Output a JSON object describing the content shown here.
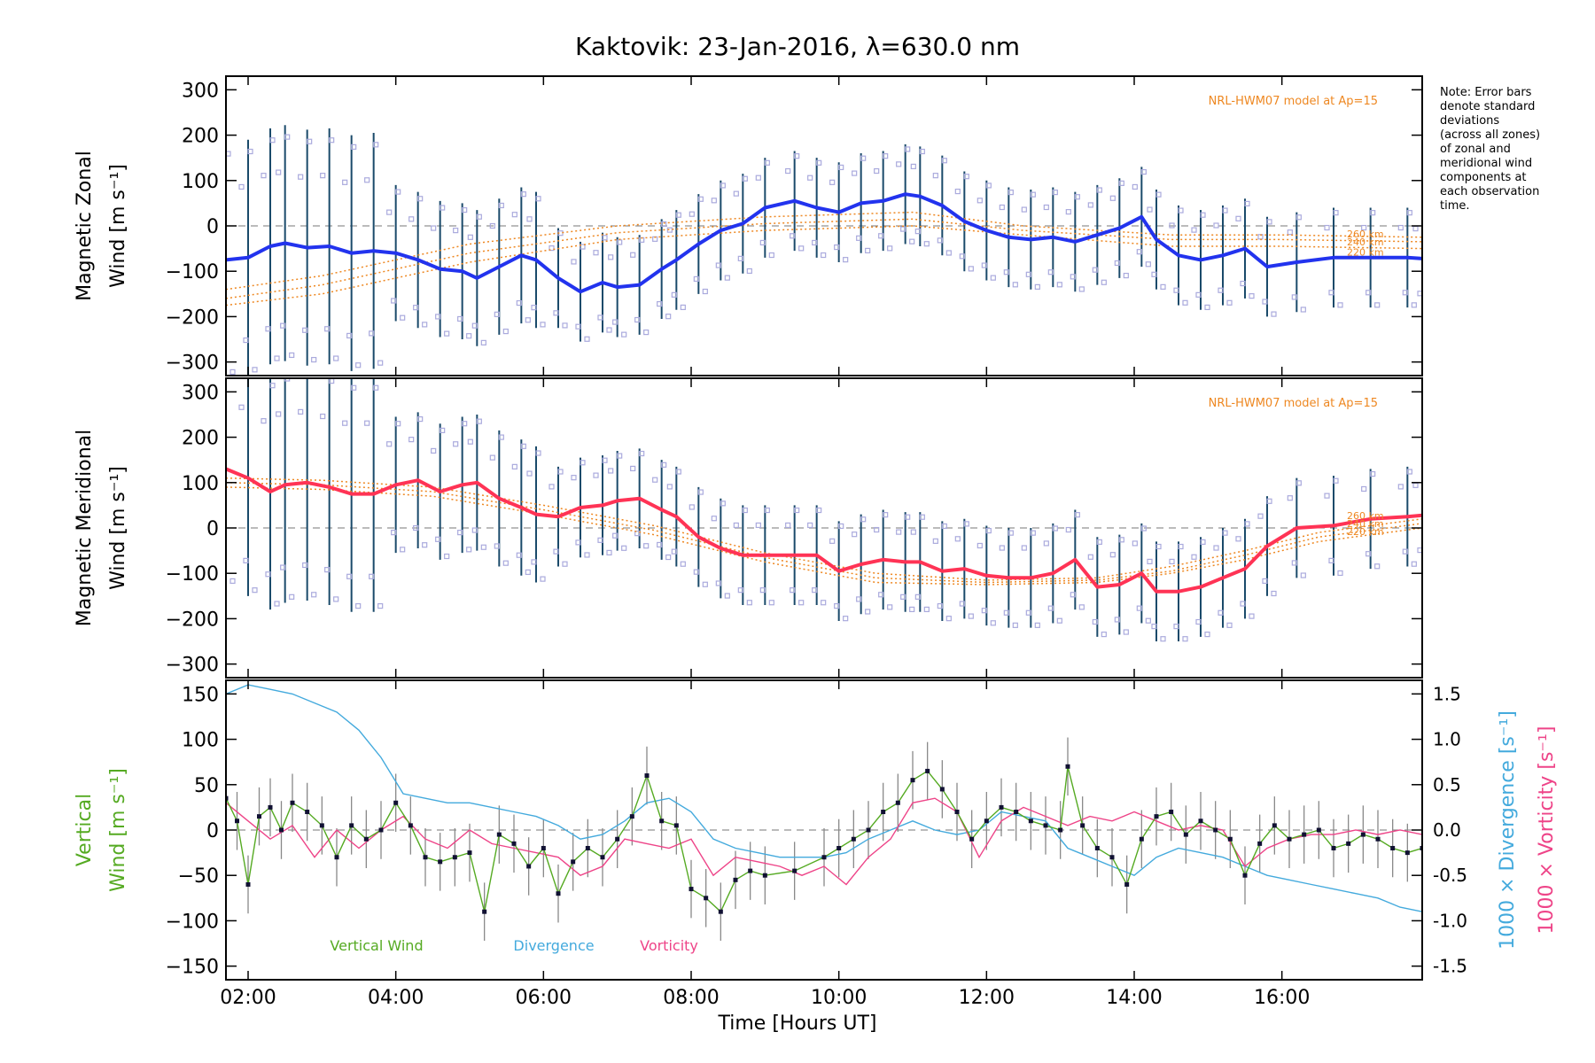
{
  "figure": {
    "title": "Kaktovik: 23-Jan-2016, λ=630.0 nm",
    "note": [
      "Note: Error bars",
      "denote standard",
      "deviations",
      "(across all zones)",
      "of zonal and",
      "meridional wind",
      "components at",
      "each observation",
      "time."
    ],
    "x_label": "Time [Hours UT]",
    "x_ticks": [
      "02:00",
      "04:00",
      "06:00",
      "08:00",
      "10:00",
      "12:00",
      "14:00",
      "16:00"
    ]
  },
  "colors": {
    "zonal": "#2233ee",
    "zonal_late": "#44aadd",
    "meridional": "#ff3355",
    "model": "#ee8822",
    "vertical": "#55aa22",
    "divergence": "#44aadd",
    "vorticity": "#ee4488",
    "errorbar": "#1a4a6a",
    "scatter": "#aaaadd"
  },
  "chart_data": [
    {
      "type": "line",
      "panel": "zonal",
      "ylabel_lines": [
        "Magnetic Zonal",
        "Wind [m s⁻¹]"
      ],
      "ylim": [
        -330,
        330
      ],
      "y_ticks": [
        300,
        200,
        100,
        0,
        -100,
        -200,
        -300
      ],
      "model_label": "NRL-HWM07 model at Ap=15",
      "model_heights": [
        "260 km",
        "240 km",
        "220 km"
      ],
      "series": [
        {
          "x": [
            1.7,
            2.0,
            2.3,
            2.5,
            2.8,
            3.1,
            3.4,
            3.7,
            4.0,
            4.3,
            4.6,
            4.9,
            5.1,
            5.4,
            5.7,
            5.9,
            6.2,
            6.5,
            6.8,
            7.0,
            7.3,
            7.6,
            7.8,
            8.1,
            8.4,
            8.7,
            9.0,
            9.4,
            9.7,
            10.0,
            10.3,
            10.6,
            10.9,
            11.1,
            11.4,
            11.7,
            12.0,
            12.3,
            12.6,
            12.9,
            13.2,
            13.5,
            13.8,
            14.1,
            14.3,
            14.6,
            14.9,
            15.2,
            15.5,
            15.8,
            16.2,
            16.7,
            17.2,
            17.7,
            17.9
          ],
          "y": [
            -75,
            -70,
            -45,
            -38,
            -48,
            -45,
            -60,
            -55,
            -60,
            -75,
            -95,
            -100,
            -115,
            -90,
            -65,
            -75,
            -115,
            -145,
            -125,
            -135,
            -130,
            -95,
            -75,
            -40,
            -10,
            5,
            40,
            55,
            40,
            30,
            50,
            55,
            70,
            65,
            45,
            10,
            -10,
            -25,
            -30,
            -25,
            -35,
            -20,
            -5,
            20,
            -30,
            -65,
            -75,
            -65,
            -50,
            -90,
            -80,
            -70,
            -70,
            -70,
            -72
          ]
        }
      ],
      "models": [
        {
          "name": "260 km",
          "x": [
            1.7,
            3.0,
            5.0,
            7.0,
            9.0,
            11.0,
            12.5,
            14.5,
            16.0,
            17.9
          ],
          "y": [
            -140,
            -110,
            -40,
            0,
            20,
            30,
            0,
            -20,
            -20,
            -25
          ]
        },
        {
          "name": "240 km",
          "x": [
            1.7,
            3.0,
            5.0,
            7.0,
            9.0,
            11.0,
            12.5,
            14.5,
            16.0,
            17.9
          ],
          "y": [
            -160,
            -130,
            -60,
            -15,
            5,
            15,
            -10,
            -30,
            -30,
            -35
          ]
        },
        {
          "name": "220 km",
          "x": [
            1.7,
            3.0,
            5.0,
            7.0,
            9.0,
            11.0,
            12.5,
            14.5,
            16.0,
            17.9
          ],
          "y": [
            -175,
            -150,
            -80,
            -30,
            -10,
            0,
            -20,
            -45,
            -45,
            -50
          ]
        }
      ]
    },
    {
      "type": "line",
      "panel": "meridional",
      "ylabel_lines": [
        "Magnetic Meridional",
        "Wind [m s⁻¹]"
      ],
      "ylim": [
        -330,
        330
      ],
      "y_ticks": [
        300,
        200,
        100,
        0,
        -100,
        -200,
        -300
      ],
      "model_label": "NRL-HWM07 model at Ap=15",
      "model_heights": [
        "260 km",
        "240 km",
        "220 km"
      ],
      "series": [
        {
          "x": [
            1.7,
            2.0,
            2.3,
            2.5,
            2.8,
            3.1,
            3.4,
            3.7,
            4.0,
            4.3,
            4.6,
            4.9,
            5.1,
            5.4,
            5.7,
            5.9,
            6.2,
            6.5,
            6.8,
            7.0,
            7.3,
            7.6,
            7.8,
            8.1,
            8.4,
            8.7,
            9.0,
            9.4,
            9.7,
            10.0,
            10.3,
            10.6,
            10.9,
            11.1,
            11.4,
            11.7,
            12.0,
            12.3,
            12.6,
            12.9,
            13.2,
            13.5,
            13.8,
            14.1,
            14.3,
            14.6,
            14.9,
            15.2,
            15.5,
            15.8,
            16.2,
            16.7,
            17.2,
            17.7,
            17.9
          ],
          "y": [
            130,
            110,
            80,
            95,
            100,
            90,
            75,
            75,
            95,
            105,
            80,
            95,
            100,
            65,
            45,
            30,
            25,
            45,
            50,
            60,
            65,
            40,
            25,
            -20,
            -45,
            -60,
            -60,
            -60,
            -60,
            -95,
            -80,
            -70,
            -75,
            -75,
            -95,
            -90,
            -105,
            -110,
            -110,
            -100,
            -70,
            -130,
            -125,
            -100,
            -140,
            -140,
            -130,
            -110,
            -90,
            -40,
            0,
            5,
            20,
            25,
            28
          ]
        }
      ],
      "models": [
        {
          "name": "260 km",
          "x": [
            1.7,
            3.0,
            4.5,
            6.0,
            7.5,
            9.0,
            10.5,
            12.0,
            13.5,
            14.5,
            15.5,
            16.5,
            17.9
          ],
          "y": [
            110,
            105,
            90,
            50,
            5,
            -55,
            -100,
            -115,
            -110,
            -85,
            -50,
            -10,
            20
          ]
        },
        {
          "name": "240 km",
          "x": [
            1.7,
            3.0,
            4.5,
            6.0,
            7.5,
            9.0,
            10.5,
            12.0,
            13.5,
            14.5,
            15.5,
            16.5,
            17.9
          ],
          "y": [
            100,
            95,
            80,
            40,
            -5,
            -65,
            -110,
            -120,
            -115,
            -95,
            -60,
            -20,
            10
          ]
        },
        {
          "name": "220 km",
          "x": [
            1.7,
            3.0,
            4.5,
            6.0,
            7.5,
            9.0,
            10.5,
            12.0,
            13.5,
            14.5,
            15.5,
            16.5,
            17.9
          ],
          "y": [
            90,
            85,
            70,
            30,
            -15,
            -75,
            -120,
            -125,
            -120,
            -100,
            -70,
            -30,
            0
          ]
        }
      ]
    },
    {
      "type": "line",
      "panel": "vertical",
      "ylabel_lines": [
        "Vertical",
        "Wind [m s⁻¹]"
      ],
      "ylim": [
        -165,
        165
      ],
      "y_ticks": [
        150,
        100,
        50,
        0,
        -50,
        -100,
        -150
      ],
      "right_axis": {
        "ylim": [
          -1.65,
          1.65
        ],
        "y_ticks": [
          "1.5",
          "1.0",
          "0.5",
          "0.0",
          "-0.5",
          "-1.0",
          "-1.5"
        ],
        "labels": [
          "1000 × Divergence [s⁻¹]",
          "1000 × Vorticity [s⁻¹]"
        ]
      },
      "legend": [
        "Vertical Wind",
        "Divergence",
        "Vorticity"
      ],
      "series": [
        {
          "name": "Vertical Wind",
          "x": [
            1.7,
            1.85,
            2.0,
            2.15,
            2.3,
            2.45,
            2.6,
            2.8,
            3.0,
            3.2,
            3.4,
            3.6,
            3.8,
            4.0,
            4.2,
            4.4,
            4.6,
            4.8,
            5.0,
            5.2,
            5.4,
            5.6,
            5.8,
            6.0,
            6.2,
            6.4,
            6.6,
            6.8,
            7.0,
            7.2,
            7.4,
            7.6,
            7.8,
            8.0,
            8.2,
            8.4,
            8.6,
            8.8,
            9.0,
            9.4,
            9.8,
            10.0,
            10.2,
            10.4,
            10.6,
            10.8,
            11.0,
            11.2,
            11.4,
            11.6,
            11.8,
            12.0,
            12.2,
            12.4,
            12.6,
            12.8,
            13.0,
            13.1,
            13.3,
            13.5,
            13.7,
            13.9,
            14.1,
            14.3,
            14.5,
            14.7,
            14.9,
            15.1,
            15.3,
            15.5,
            15.7,
            15.9,
            16.1,
            16.3,
            16.5,
            16.7,
            16.9,
            17.1,
            17.3,
            17.5,
            17.7,
            17.9
          ],
          "y": [
            35,
            10,
            -60,
            15,
            25,
            0,
            30,
            20,
            5,
            -30,
            5,
            -10,
            0,
            30,
            5,
            -30,
            -35,
            -30,
            -25,
            -90,
            -5,
            -15,
            -40,
            -20,
            -70,
            -35,
            -20,
            -30,
            -10,
            15,
            60,
            10,
            5,
            -65,
            -75,
            -90,
            -55,
            -45,
            -50,
            -45,
            -30,
            -20,
            -10,
            0,
            20,
            30,
            55,
            65,
            45,
            20,
            -10,
            10,
            25,
            20,
            10,
            5,
            0,
            70,
            5,
            -20,
            -30,
            -60,
            -10,
            15,
            20,
            -5,
            10,
            0,
            -10,
            -50,
            -15,
            5,
            -10,
            -5,
            0,
            -20,
            -15,
            -5,
            -10,
            -20,
            -25,
            -20
          ]
        },
        {
          "name": "Divergence",
          "x": [
            1.7,
            2.0,
            2.3,
            2.6,
            2.9,
            3.2,
            3.5,
            3.8,
            4.1,
            4.4,
            4.7,
            5.0,
            5.3,
            5.6,
            5.9,
            6.2,
            6.5,
            6.8,
            7.1,
            7.4,
            7.7,
            8.0,
            8.3,
            8.6,
            8.9,
            9.2,
            9.5,
            9.8,
            10.1,
            10.4,
            10.7,
            11.0,
            11.3,
            11.6,
            11.9,
            12.2,
            12.5,
            12.8,
            13.1,
            13.4,
            13.7,
            14.0,
            14.3,
            14.6,
            14.9,
            15.2,
            15.5,
            15.8,
            16.1,
            16.4,
            16.7,
            17.0,
            17.3,
            17.6,
            17.9
          ],
          "y": [
            1.5,
            1.6,
            1.55,
            1.5,
            1.4,
            1.3,
            1.1,
            0.8,
            0.4,
            0.35,
            0.3,
            0.3,
            0.25,
            0.2,
            0.15,
            0.05,
            -0.1,
            -0.05,
            0.1,
            0.3,
            0.35,
            0.2,
            -0.1,
            -0.2,
            -0.25,
            -0.3,
            -0.3,
            -0.3,
            -0.25,
            -0.1,
            0.0,
            0.1,
            0.0,
            -0.05,
            0.0,
            0.2,
            0.15,
            0.1,
            -0.2,
            -0.3,
            -0.4,
            -0.5,
            -0.3,
            -0.2,
            -0.25,
            -0.3,
            -0.4,
            -0.5,
            -0.55,
            -0.6,
            -0.65,
            -0.7,
            -0.75,
            -0.85,
            -0.9
          ]
        },
        {
          "name": "Vorticity",
          "x": [
            1.7,
            2.0,
            2.3,
            2.6,
            2.9,
            3.2,
            3.5,
            3.8,
            4.1,
            4.4,
            4.7,
            5.0,
            5.3,
            5.6,
            5.9,
            6.2,
            6.5,
            6.8,
            7.1,
            7.4,
            7.7,
            8.0,
            8.3,
            8.6,
            8.9,
            9.2,
            9.5,
            9.8,
            10.1,
            10.4,
            10.7,
            11.0,
            11.3,
            11.6,
            11.9,
            12.2,
            12.5,
            12.8,
            13.1,
            13.4,
            13.7,
            14.0,
            14.3,
            14.6,
            14.9,
            15.2,
            15.5,
            15.8,
            16.1,
            16.4,
            16.7,
            17.0,
            17.3,
            17.6,
            17.9
          ],
          "y": [
            0.3,
            0.1,
            -0.1,
            0.05,
            -0.3,
            0.0,
            -0.2,
            0.0,
            0.15,
            -0.1,
            -0.2,
            0.0,
            -0.15,
            -0.2,
            -0.25,
            -0.3,
            -0.5,
            -0.4,
            -0.1,
            -0.15,
            -0.2,
            -0.1,
            -0.5,
            -0.3,
            -0.35,
            -0.4,
            -0.5,
            -0.4,
            -0.6,
            -0.3,
            -0.1,
            0.3,
            0.35,
            0.2,
            -0.3,
            0.1,
            0.25,
            0.15,
            0.05,
            0.15,
            0.1,
            0.2,
            0.1,
            0.0,
            0.05,
            0.0,
            -0.4,
            -0.2,
            -0.1,
            -0.05,
            -0.05,
            0.0,
            -0.05,
            0.0,
            -0.05
          ]
        }
      ]
    }
  ]
}
